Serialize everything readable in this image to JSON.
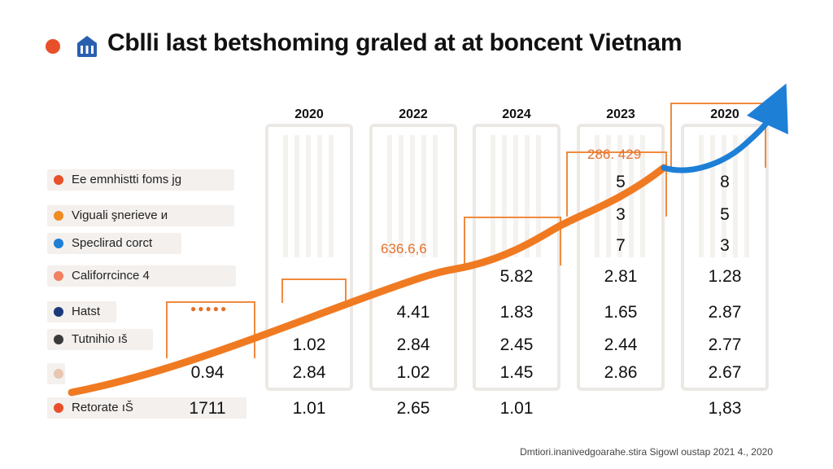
{
  "chart_data": {
    "type": "table",
    "title": "Cblli last betshoming graled at at boncent Vietnam",
    "colors": {
      "accent_orange": "#f07a22",
      "accent_blue": "#1e7fd6",
      "title_dot": "#e8502a"
    },
    "columns": [
      "2020",
      "2022",
      "2024",
      "2023",
      "2020"
    ],
    "legend": [
      {
        "label": "Ee emnhistti foms jg",
        "color": "#e8502a"
      },
      {
        "label": "Viguali şnerieve и",
        "color": "#f08a22"
      },
      {
        "label": "Speclirad corct",
        "color": "#1e7fd6"
      },
      {
        "label": "Califorrcince 4",
        "color": "#f08060"
      },
      {
        "label": "Hatst",
        "color": "#1b3a7a"
      },
      {
        "label": "Tutnihio ıš",
        "color": "#3a3a3a"
      },
      {
        "label": "",
        "color": "#e9c6b0"
      },
      {
        "label": "Retorate ıŠ",
        "color": "#e8502a"
      }
    ],
    "cells": [
      {
        "col": 0,
        "row": 6,
        "text": "0.94"
      },
      {
        "col": 0,
        "row": 7,
        "text": "1711"
      },
      {
        "col": 1,
        "row": 5,
        "text": "1.02"
      },
      {
        "col": 1,
        "row": 6,
        "text": "2.84"
      },
      {
        "col": 1,
        "row": 7,
        "text": "1.01"
      },
      {
        "col": 2,
        "row": 4,
        "text": "4.41"
      },
      {
        "col": 2,
        "row": 5,
        "text": "2.84"
      },
      {
        "col": 2,
        "row": 6,
        "text": "1.02"
      },
      {
        "col": 2,
        "row": 7,
        "text": "2.65"
      },
      {
        "col": 3,
        "row": 3,
        "text": "5.82"
      },
      {
        "col": 3,
        "row": 4,
        "text": "1.83"
      },
      {
        "col": 3,
        "row": 5,
        "text": "2.45"
      },
      {
        "col": 3,
        "row": 6,
        "text": "1.45"
      },
      {
        "col": 3,
        "row": 7,
        "text": "1.01"
      },
      {
        "col": 4,
        "row": 0,
        "text": "5"
      },
      {
        "col": 4,
        "row": 1,
        "text": "3"
      },
      {
        "col": 4,
        "row": 2,
        "text": "7"
      },
      {
        "col": 4,
        "row": 3,
        "text": "2.81"
      },
      {
        "col": 4,
        "row": 4,
        "text": "1.65"
      },
      {
        "col": 4,
        "row": 5,
        "text": "2.44"
      },
      {
        "col": 4,
        "row": 6,
        "text": "2.86"
      },
      {
        "col": 5,
        "row": 0,
        "text": "8"
      },
      {
        "col": 5,
        "row": 1,
        "text": "5"
      },
      {
        "col": 5,
        "row": 2,
        "text": "3"
      },
      {
        "col": 5,
        "row": 3,
        "text": "1.28"
      },
      {
        "col": 5,
        "row": 4,
        "text": "2.87"
      },
      {
        "col": 5,
        "row": 5,
        "text": "2.77"
      },
      {
        "col": 5,
        "row": 6,
        "text": "2.67"
      },
      {
        "col": 5,
        "row": 7,
        "text": "1,83"
      }
    ],
    "callouts": [
      {
        "text": "●●●●●",
        "col": 0
      },
      {
        "text": "636.6,6",
        "col": 2
      },
      {
        "text": "286. 429",
        "col": 4
      }
    ],
    "source": "Dmtiori.inanivedgoarahe.stira Sigowl oustap 2021 4., 2020"
  }
}
